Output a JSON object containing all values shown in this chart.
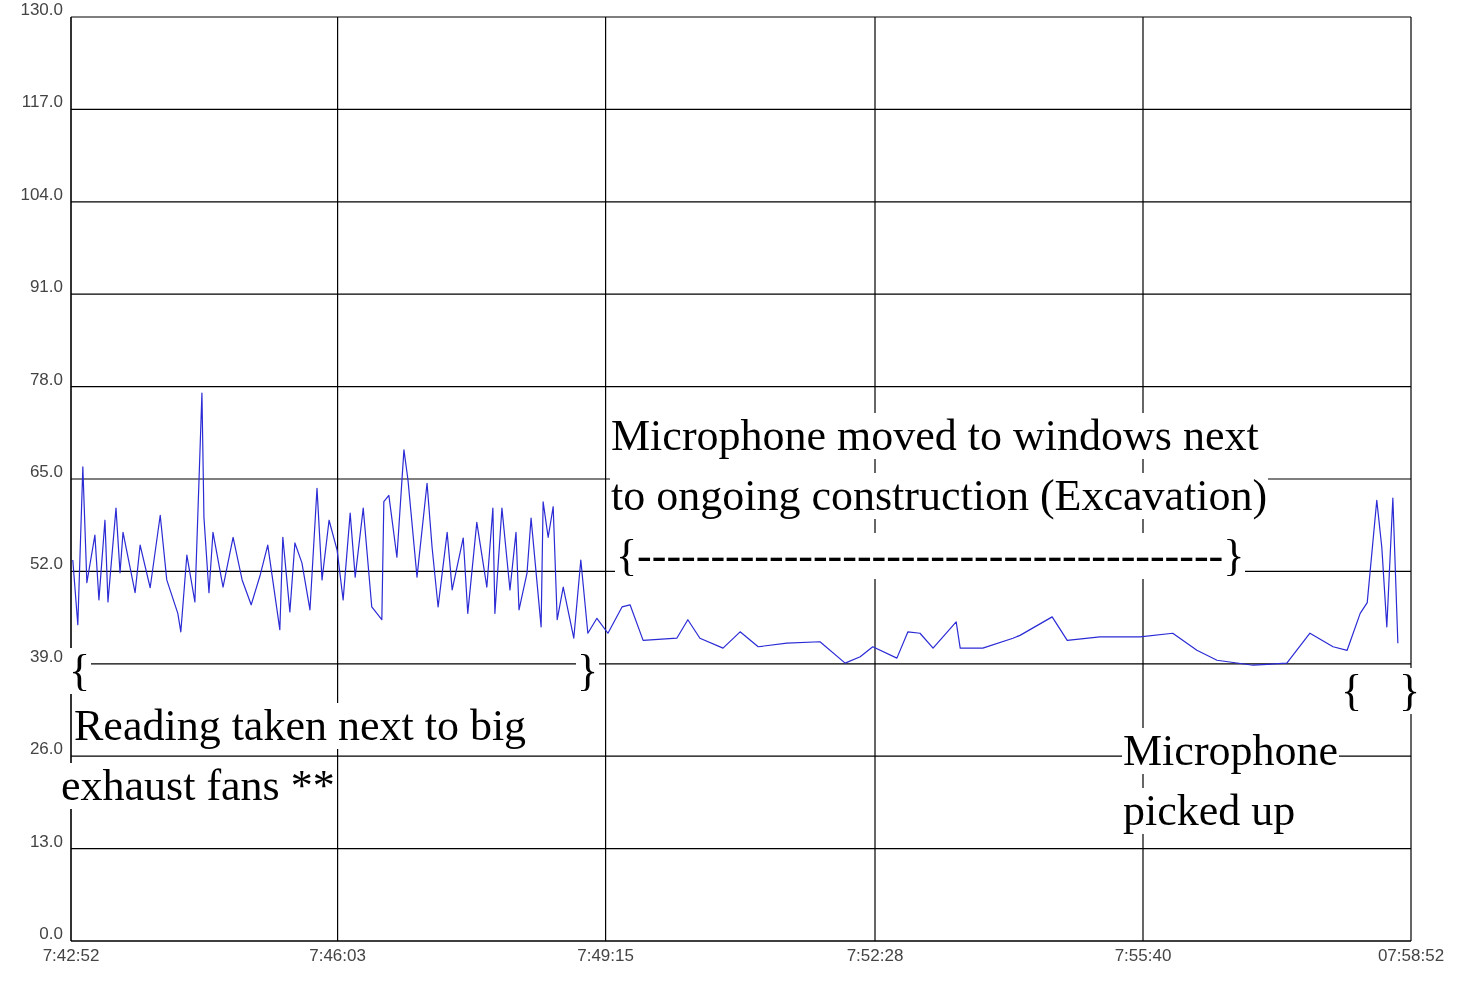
{
  "chart_data": {
    "type": "line",
    "x": [
      7.7148,
      7.7158,
      7.7168,
      7.7176,
      7.7192,
      7.72,
      7.7212,
      7.7218,
      7.7234,
      7.7242,
      7.7248,
      7.7272,
      7.7282,
      7.7302,
      7.7322,
      7.7335,
      7.7357,
      7.7363,
      7.7375,
      7.7391,
      7.7405,
      7.7409,
      7.7419,
      7.7427,
      7.7447,
      7.7467,
      7.7485,
      7.7503,
      7.7521,
      7.7536,
      7.756,
      7.7566,
      7.758,
      7.759,
      7.7604,
      7.762,
      7.7634,
      7.7644,
      7.7658,
      7.7674,
      7.7686,
      7.77,
      7.771,
      7.7726,
      7.7743,
      7.7763,
      7.7767,
      7.7777,
      7.7793,
      7.7807,
      7.7815,
      7.7833,
      7.7853,
      7.7863,
      7.7875,
      7.7893,
      7.7903,
      7.7925,
      7.7934,
      7.7952,
      7.7972,
      7.7984,
      7.7988,
      7.8002,
      7.8018,
      7.803,
      7.8036,
      7.8052,
      7.806,
      7.808,
      7.8084,
      7.8094,
      7.8104,
      7.8112,
      7.8124,
      7.8145,
      7.8159,
      7.8173,
      7.8191,
      7.8213,
      7.8241,
      7.8257,
      7.8283,
      7.835,
      7.8372,
      7.8396,
      7.8442,
      7.8476,
      7.8512,
      7.8569,
      7.8635,
      7.8685,
      7.8715,
      7.874,
      7.8788,
      7.881,
      7.8834,
      7.886,
      7.8906,
      7.8914,
      7.8959,
      7.9019,
      7.9033,
      7.9097,
      7.9127,
      7.9192,
      7.9272,
      7.9337,
      7.9385,
      7.9425,
      7.9497,
      7.9564,
      7.961,
      7.9656,
      7.9684,
      7.971,
      7.9724,
      7.9743,
      7.9753,
      7.9763,
      7.9775,
      7.9785
    ],
    "series": [
      {
        "color": "#2b2bd6",
        "values": [
          53.6,
          44.5,
          66.7,
          50.4,
          57.1,
          48.0,
          59.2,
          47.7,
          60.9,
          51.8,
          57.5,
          49.0,
          55.7,
          49.7,
          59.9,
          50.8,
          46.1,
          43.5,
          54.3,
          47.7,
          77.1,
          59.6,
          49.0,
          57.5,
          49.8,
          56.8,
          50.8,
          47.3,
          51.5,
          55.7,
          43.8,
          56.8,
          46.3,
          56.0,
          53.2,
          46.6,
          63.7,
          50.8,
          59.2,
          55.0,
          48.0,
          60.2,
          51.2,
          60.9,
          47.0,
          45.2,
          61.8,
          62.7,
          54.0,
          69.1,
          64.9,
          51.2,
          64.4,
          55.4,
          47.0,
          57.5,
          49.4,
          56.7,
          46.1,
          58.9,
          49.8,
          60.9,
          46.1,
          60.9,
          49.4,
          57.5,
          46.6,
          51.8,
          59.5,
          44.2,
          61.8,
          56.8,
          61.1,
          45.2,
          49.8,
          42.6,
          53.6,
          43.3,
          45.4,
          43.3,
          47.0,
          47.3,
          42.3,
          42.6,
          45.2,
          42.6,
          41.2,
          43.5,
          41.4,
          41.9,
          42.1,
          39.1,
          40.0,
          41.4,
          39.8,
          43.5,
          43.3,
          41.2,
          44.9,
          41.2,
          41.2,
          42.6,
          43.0,
          45.6,
          42.3,
          42.8,
          42.8,
          43.3,
          40.9,
          39.5,
          38.8,
          39.1,
          43.3,
          41.4,
          40.9,
          46.1,
          47.6,
          62.0,
          55.4,
          44.2,
          62.3,
          41.9
        ]
      }
    ],
    "xlim": [
      7.714444,
      7.981111
    ],
    "xticks": [
      {
        "value": 7.714444,
        "label": "7:42:52"
      },
      {
        "value": 7.7675,
        "label": "7:46:03"
      },
      {
        "value": 7.820833,
        "label": "7:49:15"
      },
      {
        "value": 7.874444,
        "label": "7:52:28"
      },
      {
        "value": 7.927778,
        "label": "7:55:40"
      },
      {
        "value": 7.981111,
        "label": "07:58:52"
      }
    ],
    "ylim": [
      0,
      130
    ],
    "yticks": [
      {
        "value": 0,
        "label": "0.0"
      },
      {
        "value": 13,
        "label": "13.0"
      },
      {
        "value": 26,
        "label": "26.0"
      },
      {
        "value": 39,
        "label": "39.0"
      },
      {
        "value": 52,
        "label": "52.0"
      },
      {
        "value": 65,
        "label": "65.0"
      },
      {
        "value": 78,
        "label": "78.0"
      },
      {
        "value": 91,
        "label": "91.0"
      },
      {
        "value": 104,
        "label": "104.0"
      },
      {
        "value": 117,
        "label": "117.0"
      },
      {
        "value": 130,
        "label": "130.0"
      }
    ],
    "grid": true,
    "marker": "none",
    "line_style": "solid",
    "legend": false,
    "annotations": [
      "Microphone moved to windows next",
      "to ongoing construction (Excavation)",
      "{----------------------------------------}",
      "{",
      "}",
      "Reading taken next to big",
      "exhaust fans **",
      "{",
      "}",
      "Microphone",
      "picked up"
    ]
  }
}
